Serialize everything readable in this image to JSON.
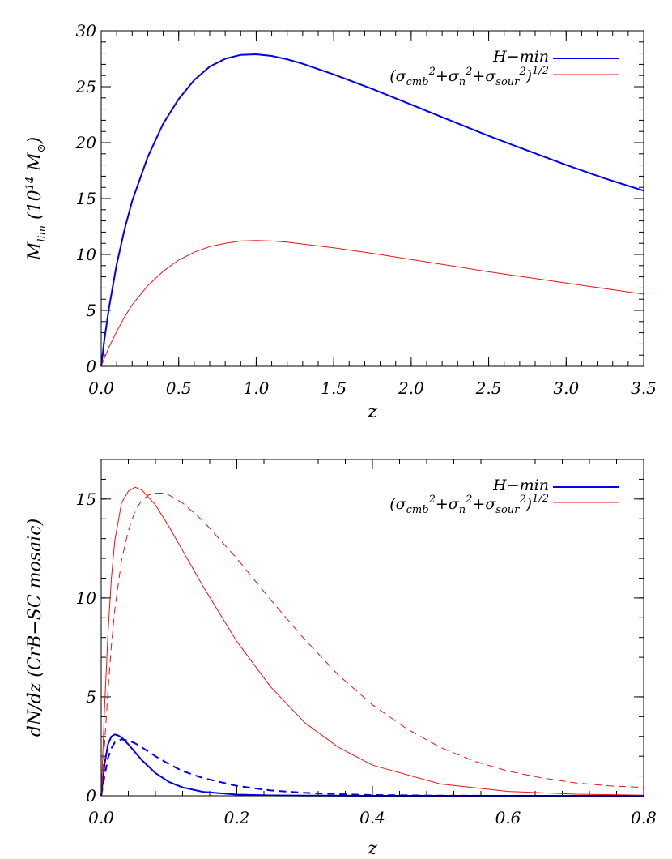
{
  "colors": {
    "h_min": "#0000ee",
    "sigma": "#ee1111",
    "axes": "#000000"
  },
  "chart_data": [
    {
      "type": "line",
      "xlabel": "z",
      "ylabel": "M_lim (10^14 M⊙)",
      "ylabel_parts": {
        "main": "M",
        "sub": "lim",
        "paren_open": " (10",
        "sup": "14",
        "unit": " M",
        "unit_sub": "⊙",
        "paren_close": ")"
      },
      "xlim": [
        0,
        3.5
      ],
      "ylim": [
        0,
        30
      ],
      "xticks": [
        0,
        0.5,
        1.0,
        1.5,
        2.0,
        2.5,
        3.0,
        3.5
      ],
      "xtick_labels": [
        "0.0",
        "0.5",
        "1.0",
        "1.5",
        "2.0",
        "2.5",
        "3.0",
        "3.5"
      ],
      "yticks": [
        0,
        5,
        10,
        15,
        20,
        25,
        30
      ],
      "ytick_labels": [
        "0",
        "5",
        "10",
        "15",
        "20",
        "25",
        "30"
      ],
      "legend": [
        {
          "text": "H−min",
          "series": "h_min"
        },
        {
          "text": "(σcmb²+σn²+σsour²)^1/2",
          "series": "sigma"
        }
      ],
      "series": [
        {
          "name": "H−min",
          "key": "h_min",
          "dashed": false,
          "stroke_width": 2,
          "x": [
            0,
            0.02,
            0.05,
            0.1,
            0.15,
            0.2,
            0.3,
            0.4,
            0.5,
            0.6,
            0.7,
            0.8,
            0.9,
            1.0,
            1.1,
            1.2,
            1.3,
            1.5,
            1.75,
            2.0,
            2.25,
            2.5,
            2.75,
            3.0,
            3.25,
            3.5
          ],
          "y": [
            0,
            2.3,
            5.2,
            9.1,
            12.2,
            14.8,
            18.7,
            21.7,
            23.9,
            25.6,
            26.8,
            27.5,
            27.85,
            27.9,
            27.75,
            27.45,
            27.05,
            26.1,
            24.8,
            23.4,
            22.0,
            20.6,
            19.3,
            18.0,
            16.8,
            15.7
          ]
        },
        {
          "name": "(σcmb²+σn²+σsour²)^1/2",
          "key": "sigma",
          "dashed": false,
          "stroke_width": 1,
          "x": [
            0,
            0.02,
            0.05,
            0.1,
            0.15,
            0.2,
            0.3,
            0.4,
            0.5,
            0.6,
            0.7,
            0.8,
            0.9,
            1.0,
            1.1,
            1.2,
            1.5,
            1.75,
            2.0,
            2.25,
            2.5,
            2.75,
            3.0,
            3.25,
            3.5
          ],
          "y": [
            0,
            0.7,
            1.7,
            3.1,
            4.4,
            5.5,
            7.2,
            8.5,
            9.5,
            10.2,
            10.7,
            11.0,
            11.2,
            11.25,
            11.2,
            11.1,
            10.6,
            10.1,
            9.55,
            9.0,
            8.45,
            7.95,
            7.45,
            6.95,
            6.45
          ]
        }
      ]
    },
    {
      "type": "line",
      "xlabel": "z",
      "ylabel": "dN/dz (CrB−SC mosaic)",
      "xlim": [
        0,
        0.8
      ],
      "ylim": [
        0,
        17
      ],
      "xticks": [
        0,
        0.2,
        0.4,
        0.6,
        0.8
      ],
      "xtick_labels": [
        "0.0",
        "0.2",
        "0.4",
        "0.6",
        "0.8"
      ],
      "yticks": [
        0,
        5,
        10,
        15
      ],
      "ytick_labels": [
        "0",
        "5",
        "10",
        "15"
      ],
      "legend": [
        {
          "text": "H−min",
          "series": "h_min"
        },
        {
          "text": "(σcmb²+σn²+σsour²)^1/2",
          "series": "sigma"
        }
      ],
      "series": [
        {
          "name": "H−min",
          "key": "h_min",
          "dashed": false,
          "stroke_width": 2,
          "x": [
            0,
            0.005,
            0.01,
            0.015,
            0.02,
            0.025,
            0.03,
            0.04,
            0.05,
            0.06,
            0.08,
            0.1,
            0.12,
            0.15,
            0.2,
            0.25,
            0.3,
            0.4,
            0.5,
            0.6,
            0.8
          ],
          "y": [
            0,
            1.6,
            2.6,
            3.0,
            3.1,
            3.05,
            2.95,
            2.6,
            2.2,
            1.8,
            1.15,
            0.7,
            0.42,
            0.2,
            0.06,
            0.02,
            0.01,
            0.0,
            0.0,
            0.0,
            0.0
          ]
        },
        {
          "name": "H−min dashed",
          "key": "h_min",
          "dashed": true,
          "stroke_width": 2,
          "x": [
            0,
            0.005,
            0.01,
            0.015,
            0.02,
            0.03,
            0.04,
            0.05,
            0.06,
            0.08,
            0.1,
            0.12,
            0.15,
            0.2,
            0.25,
            0.3,
            0.35,
            0.4,
            0.5,
            0.6,
            0.7,
            0.8
          ],
          "y": [
            0,
            1.0,
            1.9,
            2.4,
            2.7,
            2.85,
            2.8,
            2.65,
            2.45,
            2.0,
            1.6,
            1.25,
            0.9,
            0.5,
            0.27,
            0.15,
            0.08,
            0.04,
            0.01,
            0.0,
            0.0,
            0.0
          ]
        },
        {
          "name": "(σcmb²+σn²+σsour²)^1/2",
          "key": "sigma",
          "dashed": false,
          "stroke_width": 1,
          "x": [
            0,
            0.005,
            0.01,
            0.015,
            0.02,
            0.03,
            0.04,
            0.05,
            0.06,
            0.08,
            0.1,
            0.12,
            0.15,
            0.2,
            0.25,
            0.3,
            0.35,
            0.4,
            0.5,
            0.6,
            0.7,
            0.8
          ],
          "y": [
            0,
            4.5,
            8.2,
            11.0,
            12.9,
            14.8,
            15.4,
            15.6,
            15.45,
            14.7,
            13.6,
            12.4,
            10.6,
            7.8,
            5.5,
            3.7,
            2.45,
            1.55,
            0.6,
            0.22,
            0.08,
            0.03
          ]
        },
        {
          "name": "(σcmb²+σn²+σsour²)^1/2 dashed",
          "key": "sigma",
          "dashed": true,
          "stroke_width": 1,
          "x": [
            0,
            0.005,
            0.01,
            0.015,
            0.02,
            0.03,
            0.04,
            0.05,
            0.06,
            0.07,
            0.08,
            0.09,
            0.1,
            0.12,
            0.15,
            0.2,
            0.25,
            0.3,
            0.35,
            0.4,
            0.45,
            0.5,
            0.55,
            0.6,
            0.65,
            0.7,
            0.75,
            0.8
          ],
          "y": [
            0,
            2.6,
            5.3,
            7.6,
            9.4,
            11.9,
            13.4,
            14.4,
            14.95,
            15.2,
            15.3,
            15.3,
            15.2,
            14.8,
            13.9,
            12.0,
            9.9,
            7.9,
            6.1,
            4.6,
            3.4,
            2.45,
            1.75,
            1.25,
            0.9,
            0.65,
            0.5,
            0.42
          ]
        }
      ]
    }
  ]
}
